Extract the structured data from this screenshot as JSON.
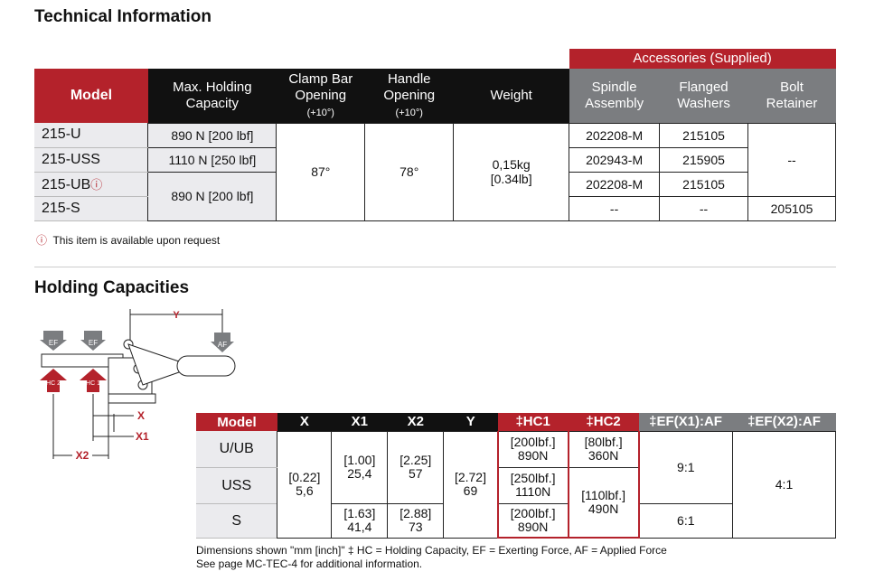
{
  "tech": {
    "title": "Technical Information",
    "accessories_header": "Accessories (Supplied)",
    "headers": {
      "model": "Model",
      "max_holding_1": "Max. Holding",
      "max_holding_2": "Capacity",
      "clamp_1": "Clamp Bar",
      "clamp_2": "Opening",
      "clamp_3": "(+10°)",
      "handle_1": "Handle",
      "handle_2": "Opening",
      "handle_3": "(+10°)",
      "weight": "Weight",
      "spindle_1": "Spindle",
      "spindle_2": "Assembly",
      "washers_1": "Flanged",
      "washers_2": "Washers",
      "bolt_1": "Bolt",
      "bolt_2": "Retainer"
    },
    "rows": [
      {
        "model": "215-U",
        "capacity": "890 N [200 lbf]",
        "spindle": "202208-M",
        "washers": "215105"
      },
      {
        "model": "215-USS",
        "capacity": "1110 N [250 lbf]",
        "spindle": "202943-M",
        "washers": "215905"
      },
      {
        "model": "215-UB",
        "spindle": "202208-M",
        "washers": "215105"
      },
      {
        "model": "215-S",
        "spindle": "--",
        "washers": "--",
        "bolt": "205105"
      }
    ],
    "capacity_merged": "890 N [200 lbf]",
    "clamp": "87°",
    "handle": "78°",
    "weight_1": "0,15kg",
    "weight_2": "[0.34lb]",
    "bolt_merged": "--",
    "request_icon": "ⓘ",
    "note": "This item is available upon request"
  },
  "holding": {
    "title": "Holding Capacities",
    "diagram_labels": {
      "y": "Y",
      "x": "X",
      "x1": "X1",
      "x2": "X2",
      "ef": "EF",
      "af": "AF",
      "hc2": "HC 2",
      "hc1": "HC 1"
    },
    "headers": {
      "model": "Model",
      "x": "X",
      "x1": "X1",
      "x2": "X2",
      "y": "Y",
      "hc1": "‡HC1",
      "hc2": "‡HC2",
      "efx1": "‡EF(X1):AF",
      "efx2": "‡EF(X2):AF"
    },
    "rows": [
      {
        "model": "U/UB",
        "x1_in": "[1.00]",
        "x1_mm": "25,4",
        "x2_in": "[2.25]",
        "x2_mm": "57",
        "hc1_in": "[200lbf.]",
        "hc1_n": "890N",
        "hc2_in": "[80lbf.]",
        "hc2_n": "360N"
      },
      {
        "model": "USS",
        "hc1_in": "[250lbf.]",
        "hc1_n": "1110N"
      },
      {
        "model": "S",
        "x1_in": "[1.63]",
        "x1_mm": "41,4",
        "x2_in": "[2.88]",
        "x2_mm": "73",
        "hc1_in": "[200lbf.]",
        "hc1_n": "890N"
      }
    ],
    "x_in": "[0.22]",
    "x_mm": "5,6",
    "y_in": "[2.72]",
    "y_mm": "69",
    "hc2_uss_s_in": "[110lbf.]",
    "hc2_uss_s_n": "490N",
    "efx1_a": "9:1",
    "efx1_b": "6:1",
    "efx2": "4:1",
    "footnote_1": "Dimensions shown \"mm [inch]\"  ‡ HC = Holding Capacity, EF = Exerting Force, AF = Applied Force",
    "footnote_2": "See page MC-TEC-4 for additional information."
  },
  "colors": {
    "red": "#b4222b",
    "black": "#111111",
    "gray": "#7b7d80"
  }
}
